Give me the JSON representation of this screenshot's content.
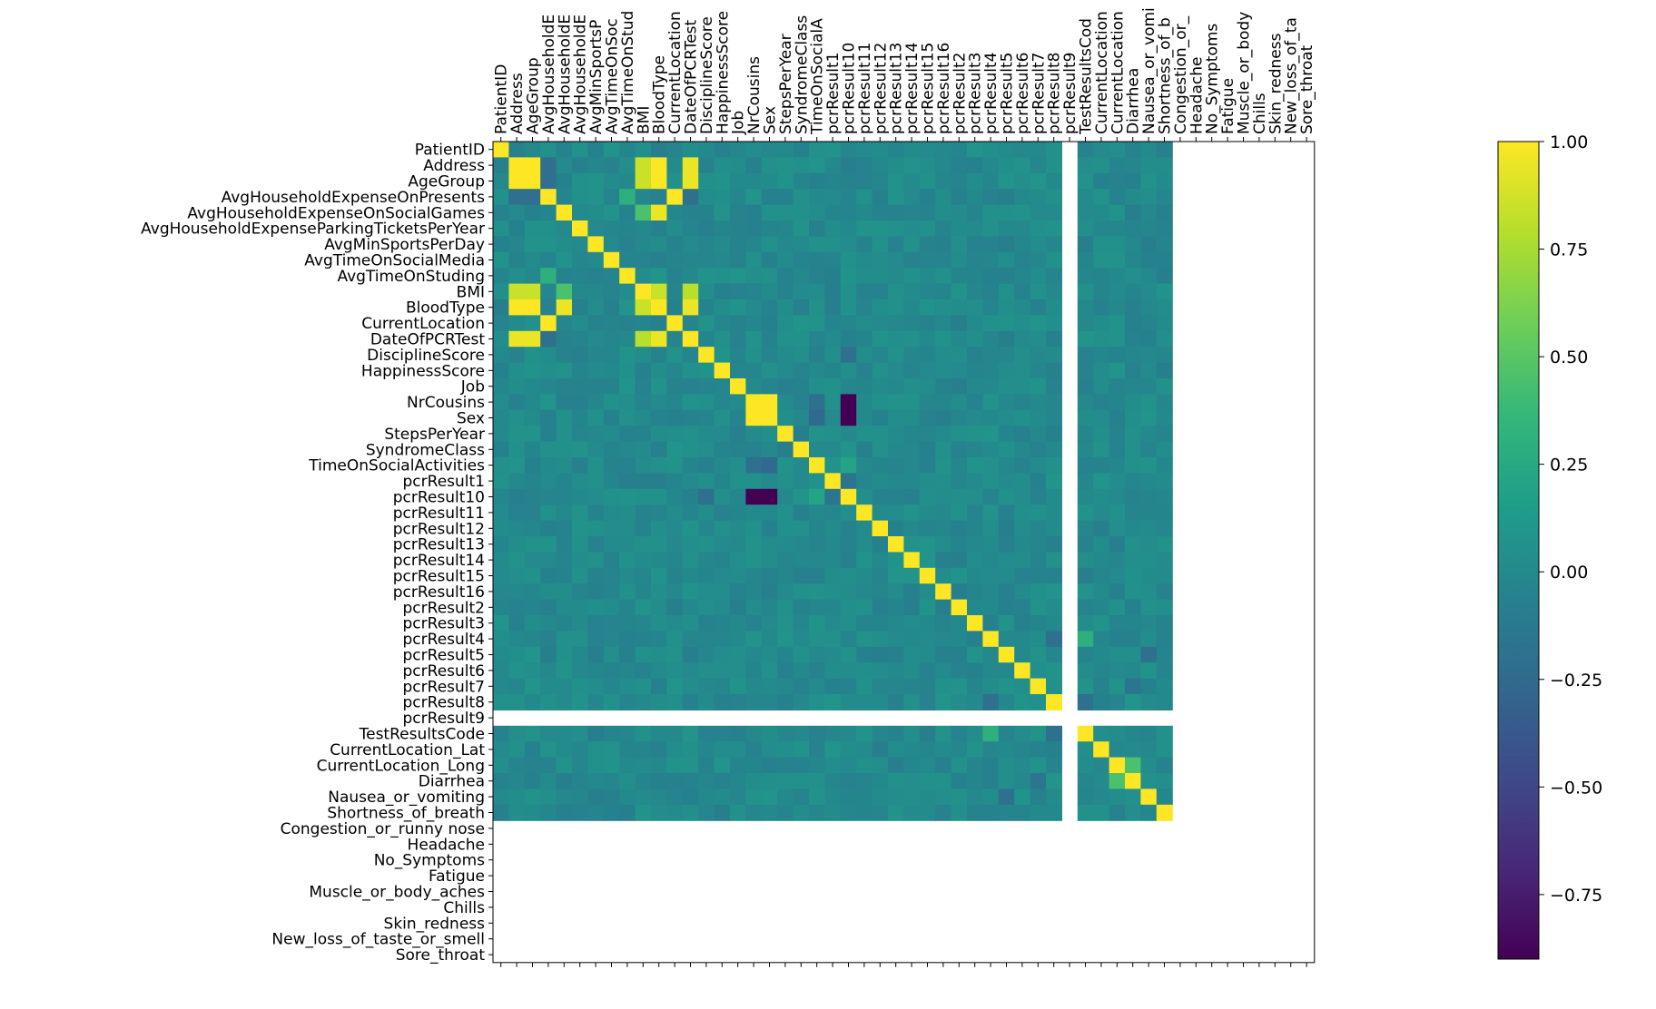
{
  "chart_data": {
    "type": "heatmap",
    "title": "",
    "xlabel": "",
    "ylabel": "",
    "x_tick_labels_shown": [
      "PatientID",
      "Address",
      "AgeGroup",
      "AvgHouseholdE",
      "AvgHouseholdE",
      "AvgHouseholdE",
      "AvgMinSportsP",
      "AvgTimeOnSoc",
      "AvgTimeOnStud",
      "BMI",
      "BloodType",
      "CurrentLocation",
      "DateOfPCRTest",
      "DisciplineScore",
      "HappinessScore",
      "Job",
      "NrCousins",
      "Sex",
      "StepsPerYear",
      "SyndromeClass",
      "TimeOnSocialA",
      "pcrResult1",
      "pcrResult10",
      "pcrResult11",
      "pcrResult12",
      "pcrResult13",
      "pcrResult14",
      "pcrResult15",
      "pcrResult16",
      "pcrResult2",
      "pcrResult3",
      "pcrResult4",
      "pcrResult5",
      "pcrResult6",
      "pcrResult7",
      "pcrResult8",
      "pcrResult9",
      "TestResultsCod",
      "CurrentLocation",
      "CurrentLocation",
      "Diarrhea",
      "Nausea_or_vomi",
      "Shortness_of_b",
      "Congestion_or_",
      "Headache",
      "No_Symptoms",
      "Fatigue",
      "Muscle_or_body",
      "Chills",
      "Skin_redness",
      "New_loss_of_ta",
      "Sore_throat"
    ],
    "variables": [
      "PatientID",
      "Address",
      "AgeGroup",
      "AvgHouseholdExpenseOnPresents",
      "AvgHouseholdExpenseOnSocialGames",
      "AvgHouseholdExpenseParkingTicketsPerYear",
      "AvgMinSportsPerDay",
      "AvgTimeOnSocialMedia",
      "AvgTimeOnStuding",
      "BMI",
      "BloodType",
      "CurrentLocation",
      "DateOfPCRTest",
      "DisciplineScore",
      "HappinessScore",
      "Job",
      "NrCousins",
      "Sex",
      "StepsPerYear",
      "SyndromeClass",
      "TimeOnSocialActivities",
      "pcrResult1",
      "pcrResult10",
      "pcrResult11",
      "pcrResult12",
      "pcrResult13",
      "pcrResult14",
      "pcrResult15",
      "pcrResult16",
      "pcrResult2",
      "pcrResult3",
      "pcrResult4",
      "pcrResult5",
      "pcrResult6",
      "pcrResult7",
      "pcrResult8",
      "pcrResult9",
      "TestResultsCode",
      "CurrentLocation_Lat",
      "CurrentLocation_Long",
      "Diarrhea",
      "Nausea_or_vomiting",
      "Shortness_of_breath",
      "Congestion_or_runny nose",
      "Headache",
      "No_Symptoms",
      "Fatigue",
      "Muscle_or_body_aches",
      "Chills",
      "Skin_redness",
      "New_loss_of_taste_or_smell",
      "Sore_throat"
    ],
    "nan_variables": [
      "pcrResult9",
      "Congestion_or_runny nose",
      "Headache",
      "No_Symptoms",
      "Fatigue",
      "Muscle_or_body_aches",
      "Chills",
      "Skin_redness",
      "New_loss_of_taste_or_smell",
      "Sore_throat"
    ],
    "diagonal": 1.0,
    "background_value": 0.0,
    "strong_correlations": [
      {
        "a": "Address",
        "b": "AgeGroup",
        "value": 1.0
      },
      {
        "a": "Address",
        "b": "BloodType",
        "value": 1.0
      },
      {
        "a": "AgeGroup",
        "b": "BloodType",
        "value": 1.0
      },
      {
        "a": "Address",
        "b": "BMI",
        "value": 0.85
      },
      {
        "a": "AgeGroup",
        "b": "BMI",
        "value": 0.85
      },
      {
        "a": "BMI",
        "b": "BloodType",
        "value": 0.85
      },
      {
        "a": "Address",
        "b": "DateOfPCRTest",
        "value": 0.95
      },
      {
        "a": "AgeGroup",
        "b": "DateOfPCRTest",
        "value": 0.95
      },
      {
        "a": "BloodType",
        "b": "DateOfPCRTest",
        "value": 0.95
      },
      {
        "a": "BMI",
        "b": "DateOfPCRTest",
        "value": 0.8
      },
      {
        "a": "AvgHouseholdExpenseOnPresents",
        "b": "CurrentLocation",
        "value": 1.0
      },
      {
        "a": "AvgHouseholdExpenseOnSocialGames",
        "b": "BMI",
        "value": 0.45
      },
      {
        "a": "AvgHouseholdExpenseOnSocialGames",
        "b": "BloodType",
        "value": 0.95
      },
      {
        "a": "AvgHouseholdExpenseOnPresents",
        "b": "Address",
        "value": -0.2
      },
      {
        "a": "AvgHouseholdExpenseOnPresents",
        "b": "AgeGroup",
        "value": -0.2
      },
      {
        "a": "AvgHouseholdExpenseOnPresents",
        "b": "DateOfPCRTest",
        "value": -0.2
      },
      {
        "a": "AvgTimeOnStuding",
        "b": "AvgHouseholdExpenseOnPresents",
        "value": 0.3
      },
      {
        "a": "NrCousins",
        "b": "Sex",
        "value": 1.0
      },
      {
        "a": "NrCousins",
        "b": "pcrResult10",
        "value": -0.9
      },
      {
        "a": "Sex",
        "b": "pcrResult10",
        "value": -0.9
      },
      {
        "a": "NrCousins",
        "b": "TimeOnSocialActivities",
        "value": -0.2
      },
      {
        "a": "Sex",
        "b": "TimeOnSocialActivities",
        "value": -0.25
      },
      {
        "a": "pcrResult1",
        "b": "pcrResult10",
        "value": -0.15
      },
      {
        "a": "TimeOnSocialActivities",
        "b": "pcrResult10",
        "value": 0.2
      },
      {
        "a": "DisciplineScore",
        "b": "pcrResult10",
        "value": -0.2
      },
      {
        "a": "pcrResult4",
        "b": "TestResultsCode",
        "value": 0.3
      },
      {
        "a": "pcrResult8",
        "b": "TestResultsCode",
        "value": -0.2
      },
      {
        "a": "pcrResult8",
        "b": "pcrResult4",
        "value": -0.2
      },
      {
        "a": "CurrentLocation_Long",
        "b": "Diarrhea",
        "value": 0.45
      },
      {
        "a": "pcrResult7",
        "b": "Diarrhea",
        "value": -0.15
      },
      {
        "a": "pcrResult5",
        "b": "Nausea_or_vomiting",
        "value": -0.2
      }
    ],
    "colorbar": {
      "colormap": "viridis",
      "vmin": -0.9,
      "vmax": 1.0,
      "ticks": [
        1.0,
        0.75,
        0.5,
        0.25,
        0.0,
        -0.25,
        -0.5,
        -0.75
      ],
      "tick_labels": [
        "1.00",
        "0.75",
        "0.50",
        "0.25",
        "0.00",
        "−0.25",
        "−0.50",
        "−0.75"
      ]
    },
    "grid": false,
    "legend": "colorbar right"
  }
}
